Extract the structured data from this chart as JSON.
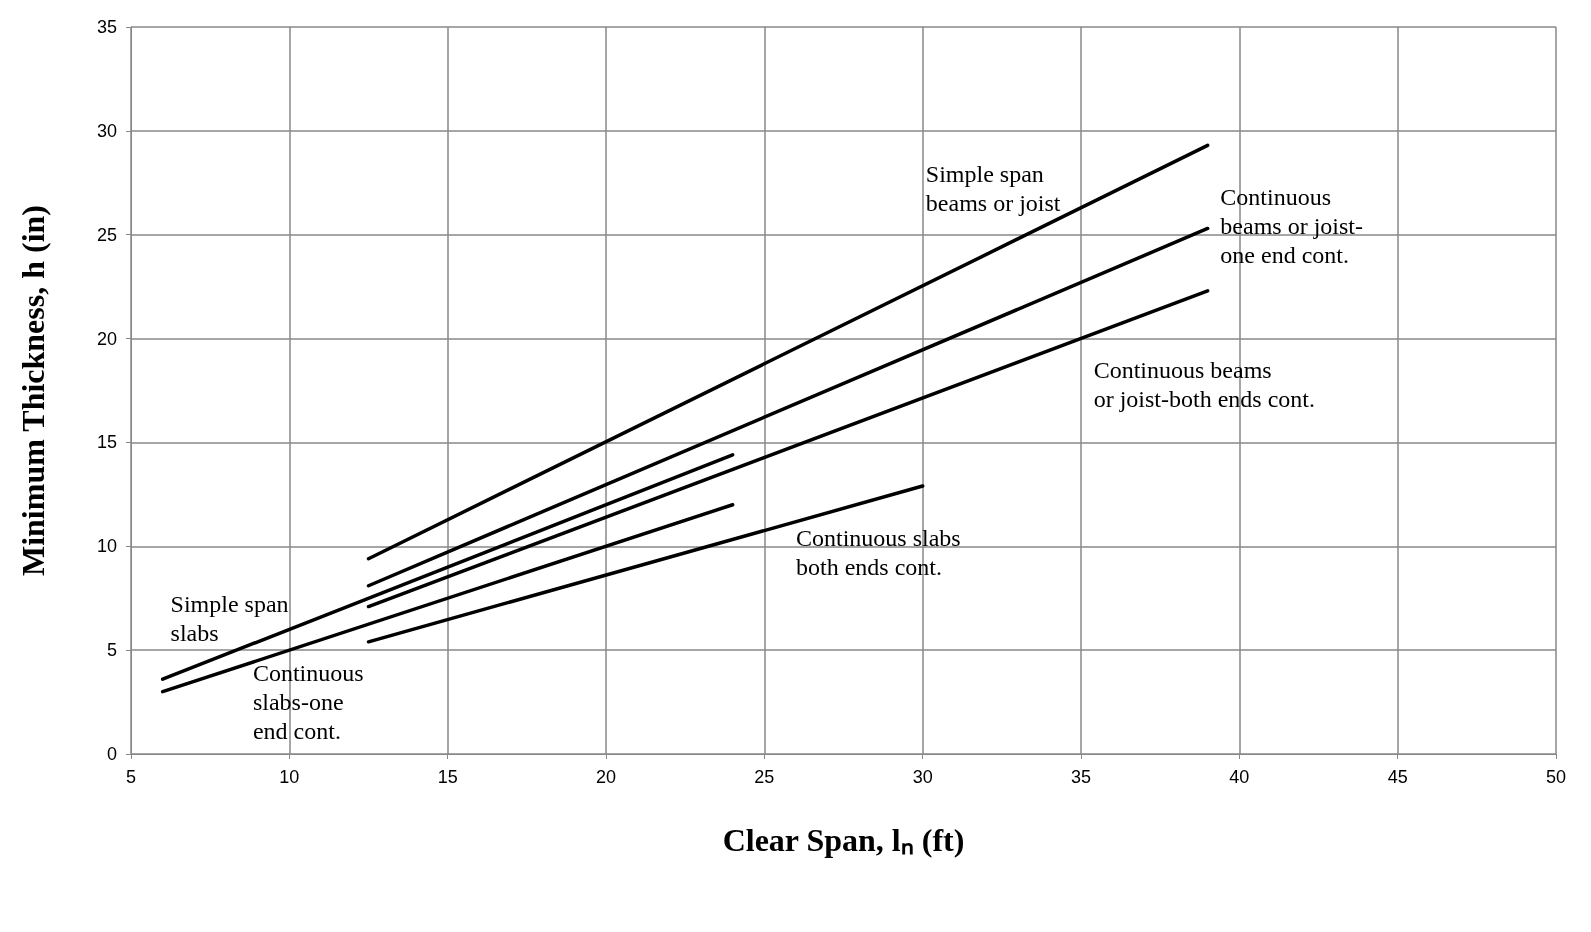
{
  "chart_data": {
    "type": "line",
    "xlabel": "Clear Span, lₙ (ft)",
    "ylabel": "Minimum Thickness, h (in)",
    "xlim": [
      5,
      50
    ],
    "xticks": [
      5,
      10,
      15,
      20,
      25,
      30,
      35,
      40,
      45,
      50
    ],
    "ylim": [
      0,
      35
    ],
    "yticks": [
      0,
      5,
      10,
      15,
      20,
      25,
      30,
      35
    ],
    "grid": true,
    "marker": "none",
    "line_style": "solid",
    "series": [
      {
        "color": "#000000",
        "x": [
          6,
          24
        ],
        "values": [
          3.6,
          14.4
        ]
      },
      {
        "color": "#000000",
        "x": [
          6,
          24
        ],
        "values": [
          3.0,
          12.0
        ]
      },
      {
        "color": "#000000",
        "x": [
          12.5,
          30
        ],
        "values": [
          5.4,
          12.9
        ]
      },
      {
        "color": "#000000",
        "x": [
          12.5,
          39
        ],
        "values": [
          9.4,
          29.3
        ]
      },
      {
        "color": "#000000",
        "x": [
          12.5,
          39
        ],
        "values": [
          8.1,
          25.3
        ]
      },
      {
        "color": "#000000",
        "x": [
          12.5,
          39
        ],
        "values": [
          7.1,
          22.3
        ]
      }
    ],
    "annotations": [
      "Simple span\nbeams or joist",
      "Continuous\nbeams or joist-\none end cont.",
      "Continuous beams\nor joist-both ends cont.",
      "Continuous slabs\nboth ends cont.",
      "Simple span\nslabs",
      "Continuous\nslabs-one\nend cont."
    ]
  }
}
